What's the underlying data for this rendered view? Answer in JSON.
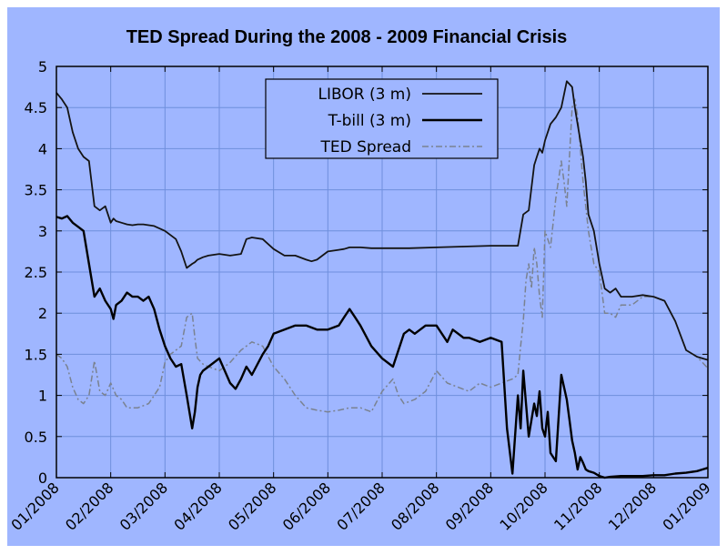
{
  "chart_data": {
    "type": "line",
    "title": "TED Spread During the 2008 - 2009 Financial Crisis",
    "xlabel": "",
    "ylabel": "",
    "ylim": [
      0,
      5
    ],
    "xlim": [
      0,
      12
    ],
    "grid": true,
    "legend_position": "top-center",
    "colors": {
      "background": "#9fb6ff",
      "grid": "#6f8fdc",
      "frame": "#000000",
      "libor": "#141414",
      "tbill": "#000000",
      "ted": "#7a8290"
    },
    "y_ticks": [
      {
        "v": 0,
        "label": "0"
      },
      {
        "v": 0.5,
        "label": "0.5"
      },
      {
        "v": 1,
        "label": "1"
      },
      {
        "v": 1.5,
        "label": "1.5"
      },
      {
        "v": 2,
        "label": "2"
      },
      {
        "v": 2.5,
        "label": "2.5"
      },
      {
        "v": 3,
        "label": "3"
      },
      {
        "v": 3.5,
        "label": "3.5"
      },
      {
        "v": 4,
        "label": "4"
      },
      {
        "v": 4.5,
        "label": "4.5"
      },
      {
        "v": 5,
        "label": "5"
      }
    ],
    "x_ticks": [
      {
        "v": 0,
        "label": "01/2008"
      },
      {
        "v": 1,
        "label": "02/2008"
      },
      {
        "v": 2,
        "label": "03/2008"
      },
      {
        "v": 3,
        "label": "04/2008"
      },
      {
        "v": 4,
        "label": "05/2008"
      },
      {
        "v": 5,
        "label": "06/2008"
      },
      {
        "v": 6,
        "label": "07/2008"
      },
      {
        "v": 7,
        "label": "08/2008"
      },
      {
        "v": 8,
        "label": "09/2008"
      },
      {
        "v": 9,
        "label": "10/2008"
      },
      {
        "v": 10,
        "label": "11/2008"
      },
      {
        "v": 11,
        "label": "12/2008"
      },
      {
        "v": 12,
        "label": "01/2009"
      }
    ],
    "series": [
      {
        "name": "LIBOR (3 m)",
        "style": "solid-thin",
        "x": [
          0,
          0.1,
          0.2,
          0.3,
          0.4,
          0.5,
          0.6,
          0.7,
          0.8,
          0.9,
          1.0,
          1.05,
          1.1,
          1.2,
          1.3,
          1.4,
          1.5,
          1.6,
          1.8,
          2.0,
          2.2,
          2.3,
          2.4,
          2.5,
          2.55,
          2.6,
          2.7,
          2.8,
          3.0,
          3.2,
          3.4,
          3.5,
          3.6,
          3.8,
          4.0,
          4.2,
          4.4,
          4.6,
          4.7,
          4.8,
          5.0,
          5.2,
          5.3,
          5.4,
          5.5,
          5.6,
          5.8,
          6.0,
          6.5,
          7.0,
          7.5,
          8.0,
          8.5,
          8.6,
          8.7,
          8.8,
          8.85,
          8.9,
          8.95,
          9.0,
          9.1,
          9.2,
          9.3,
          9.4,
          9.5,
          9.55,
          9.6,
          9.7,
          9.75,
          9.8,
          9.9,
          10.0,
          10.1,
          10.2,
          10.3,
          10.4,
          10.5,
          10.6,
          10.8,
          11.0,
          11.2,
          11.4,
          11.6,
          11.8,
          11.9,
          12.0
        ],
        "values": [
          4.68,
          4.6,
          4.5,
          4.2,
          4.0,
          3.9,
          3.85,
          3.3,
          3.25,
          3.3,
          3.1,
          3.15,
          3.12,
          3.1,
          3.08,
          3.07,
          3.08,
          3.08,
          3.06,
          3.0,
          2.9,
          2.75,
          2.55,
          2.6,
          2.62,
          2.65,
          2.68,
          2.7,
          2.72,
          2.7,
          2.72,
          2.9,
          2.92,
          2.9,
          2.78,
          2.7,
          2.7,
          2.65,
          2.63,
          2.65,
          2.75,
          2.77,
          2.78,
          2.8,
          2.8,
          2.8,
          2.79,
          2.79,
          2.79,
          2.8,
          2.81,
          2.82,
          2.82,
          3.2,
          3.25,
          3.8,
          3.9,
          4.0,
          3.95,
          4.1,
          4.3,
          4.38,
          4.5,
          4.82,
          4.75,
          4.5,
          4.3,
          3.9,
          3.6,
          3.2,
          3.0,
          2.6,
          2.3,
          2.25,
          2.3,
          2.2,
          2.2,
          2.2,
          2.22,
          2.2,
          2.15,
          1.9,
          1.55,
          1.47,
          1.45,
          1.43
        ]
      },
      {
        "name": "T-bill (3 m)",
        "style": "solid-thick",
        "x": [
          0,
          0.1,
          0.2,
          0.3,
          0.4,
          0.5,
          0.6,
          0.7,
          0.8,
          0.9,
          1.0,
          1.05,
          1.1,
          1.2,
          1.3,
          1.4,
          1.5,
          1.6,
          1.7,
          1.8,
          1.9,
          2.0,
          2.1,
          2.2,
          2.3,
          2.4,
          2.5,
          2.55,
          2.6,
          2.65,
          2.7,
          2.8,
          3.0,
          3.1,
          3.2,
          3.3,
          3.4,
          3.5,
          3.6,
          3.8,
          3.9,
          4.0,
          4.2,
          4.4,
          4.6,
          4.8,
          5.0,
          5.2,
          5.3,
          5.4,
          5.5,
          5.6,
          5.8,
          6.0,
          6.2,
          6.3,
          6.4,
          6.5,
          6.6,
          6.8,
          7.0,
          7.2,
          7.3,
          7.5,
          7.6,
          7.8,
          8.0,
          8.2,
          8.3,
          8.4,
          8.5,
          8.55,
          8.6,
          8.7,
          8.8,
          8.85,
          8.9,
          8.95,
          9.0,
          9.05,
          9.1,
          9.2,
          9.3,
          9.4,
          9.45,
          9.5,
          9.55,
          9.6,
          9.65,
          9.7,
          9.75,
          9.8,
          9.9,
          10.0,
          10.1,
          10.2,
          10.4,
          10.6,
          10.8,
          11.0,
          11.2,
          11.4,
          11.6,
          11.8,
          11.9,
          12.0
        ],
        "values": [
          3.17,
          3.15,
          3.18,
          3.1,
          3.05,
          3.0,
          2.6,
          2.2,
          2.3,
          2.15,
          2.05,
          1.93,
          2.1,
          2.15,
          2.25,
          2.2,
          2.2,
          2.15,
          2.2,
          2.05,
          1.8,
          1.6,
          1.45,
          1.35,
          1.38,
          1.0,
          0.6,
          0.8,
          1.1,
          1.25,
          1.3,
          1.35,
          1.45,
          1.3,
          1.15,
          1.08,
          1.2,
          1.35,
          1.25,
          1.5,
          1.6,
          1.75,
          1.8,
          1.85,
          1.85,
          1.8,
          1.8,
          1.85,
          1.95,
          2.05,
          1.95,
          1.85,
          1.6,
          1.45,
          1.35,
          1.55,
          1.75,
          1.8,
          1.75,
          1.85,
          1.85,
          1.65,
          1.8,
          1.7,
          1.7,
          1.65,
          1.7,
          1.65,
          0.6,
          0.05,
          1.0,
          0.6,
          1.3,
          0.5,
          0.9,
          0.75,
          1.05,
          0.6,
          0.5,
          0.8,
          0.3,
          0.2,
          1.25,
          0.95,
          0.7,
          0.45,
          0.3,
          0.1,
          0.25,
          0.18,
          0.1,
          0.08,
          0.06,
          0.02,
          0.0,
          0.01,
          0.02,
          0.02,
          0.02,
          0.03,
          0.03,
          0.05,
          0.06,
          0.08,
          0.1,
          0.12
        ]
      },
      {
        "name": "TED Spread",
        "style": "dashdot",
        "x": [
          0,
          0.1,
          0.2,
          0.3,
          0.4,
          0.5,
          0.6,
          0.7,
          0.8,
          0.9,
          1.0,
          1.1,
          1.2,
          1.3,
          1.5,
          1.7,
          1.9,
          2.0,
          2.1,
          2.2,
          2.3,
          2.4,
          2.5,
          2.55,
          2.6,
          2.7,
          2.8,
          3.0,
          3.2,
          3.4,
          3.6,
          3.8,
          4.0,
          4.2,
          4.4,
          4.6,
          4.8,
          5.0,
          5.2,
          5.4,
          5.6,
          5.8,
          6.0,
          6.2,
          6.3,
          6.4,
          6.6,
          6.8,
          7.0,
          7.2,
          7.4,
          7.6,
          7.8,
          8.0,
          8.2,
          8.4,
          8.5,
          8.55,
          8.6,
          8.65,
          8.7,
          8.75,
          8.8,
          8.85,
          8.9,
          8.95,
          9.0,
          9.1,
          9.2,
          9.3,
          9.35,
          9.4,
          9.5,
          9.55,
          9.6,
          9.7,
          9.8,
          9.9,
          10.0,
          10.1,
          10.2,
          10.3,
          10.4,
          10.6,
          10.8,
          11.0,
          11.2,
          11.4,
          11.6,
          11.8,
          11.9,
          12.0
        ],
        "values": [
          1.5,
          1.45,
          1.35,
          1.1,
          0.95,
          0.9,
          1.0,
          1.42,
          1.05,
          1.0,
          1.15,
          1.0,
          0.95,
          0.85,
          0.85,
          0.9,
          1.1,
          1.4,
          1.5,
          1.55,
          1.6,
          1.95,
          2.0,
          1.7,
          1.45,
          1.38,
          1.35,
          1.3,
          1.4,
          1.55,
          1.65,
          1.6,
          1.35,
          1.2,
          1.0,
          0.85,
          0.82,
          0.8,
          0.82,
          0.85,
          0.85,
          0.8,
          1.05,
          1.2,
          1.0,
          0.9,
          0.95,
          1.05,
          1.3,
          1.15,
          1.1,
          1.05,
          1.15,
          1.1,
          1.15,
          1.2,
          1.25,
          1.6,
          1.9,
          2.4,
          2.6,
          2.3,
          2.8,
          2.6,
          2.2,
          1.95,
          3.0,
          2.8,
          3.4,
          3.85,
          3.6,
          3.3,
          4.5,
          4.6,
          4.4,
          3.6,
          3.0,
          2.6,
          2.5,
          2.0,
          2.0,
          1.95,
          2.1,
          2.1,
          2.2,
          2.2,
          2.15,
          1.9,
          1.55,
          1.47,
          1.4,
          1.33
        ]
      }
    ]
  }
}
